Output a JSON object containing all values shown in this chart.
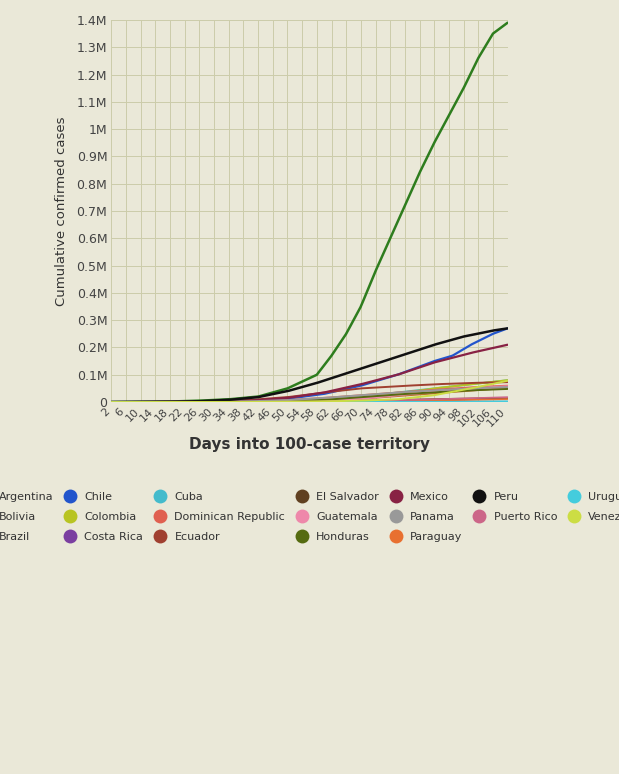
{
  "title": "",
  "xlabel": "Days into 100-case territory",
  "ylabel": "Cumulative confirmed cases",
  "background_color": "#eae8d8",
  "grid_color": "#ccccaa",
  "xlim": [
    2,
    110
  ],
  "ylim": [
    0,
    1400000
  ],
  "xticks": [
    2,
    6,
    10,
    14,
    18,
    22,
    26,
    30,
    34,
    38,
    42,
    46,
    50,
    54,
    58,
    62,
    66,
    70,
    74,
    78,
    82,
    86,
    90,
    94,
    98,
    102,
    106,
    110
  ],
  "yticks": [
    0,
    100000,
    200000,
    300000,
    400000,
    500000,
    600000,
    700000,
    800000,
    900000,
    1000000,
    1100000,
    1200000,
    1300000,
    1400000
  ],
  "series": {
    "Argentina": {
      "color": "#5bbcaa",
      "lw": 1.4,
      "x": [
        2,
        10,
        20,
        30,
        40,
        50,
        60,
        70,
        80,
        90,
        100,
        110
      ],
      "y": [
        0,
        100,
        300,
        600,
        1200,
        3000,
        8000,
        20000,
        35000,
        50000,
        65000,
        80000
      ]
    },
    "Bolivia": {
      "color": "#b8732a",
      "lw": 1.4,
      "x": [
        2,
        10,
        20,
        30,
        40,
        50,
        60,
        70,
        80,
        90,
        100,
        110
      ],
      "y": [
        0,
        100,
        200,
        400,
        800,
        2000,
        5000,
        12000,
        22000,
        32000,
        42000,
        52000
      ]
    },
    "Brazil": {
      "color": "#2e7d1e",
      "lw": 1.8,
      "x": [
        2,
        10,
        18,
        26,
        34,
        42,
        50,
        58,
        62,
        66,
        70,
        74,
        78,
        82,
        86,
        90,
        94,
        98,
        102,
        106,
        110
      ],
      "y": [
        0,
        500,
        2000,
        5000,
        10000,
        20000,
        50000,
        100000,
        170000,
        250000,
        350000,
        480000,
        600000,
        720000,
        840000,
        950000,
        1050000,
        1150000,
        1260000,
        1350000,
        1390000
      ]
    },
    "Chile": {
      "color": "#2255cc",
      "lw": 1.6,
      "x": [
        2,
        10,
        20,
        30,
        40,
        50,
        60,
        70,
        80,
        90,
        95,
        100,
        106,
        110
      ],
      "y": [
        0,
        200,
        800,
        2000,
        5000,
        12000,
        30000,
        60000,
        100000,
        150000,
        170000,
        210000,
        250000,
        270000
      ]
    },
    "Colombia": {
      "color": "#b8c422",
      "lw": 1.4,
      "x": [
        2,
        10,
        20,
        30,
        40,
        50,
        60,
        70,
        80,
        90,
        100,
        110
      ],
      "y": [
        0,
        100,
        200,
        400,
        800,
        2000,
        5000,
        15000,
        30000,
        50000,
        65000,
        80000
      ]
    },
    "Costa Rica": {
      "color": "#7b3fa0",
      "lw": 1.2,
      "x": [
        2,
        10,
        20,
        30,
        40,
        50,
        60,
        70,
        80,
        90,
        100,
        110
      ],
      "y": [
        0,
        50,
        100,
        200,
        400,
        800,
        1500,
        3000,
        5000,
        7000,
        10000,
        13000
      ]
    },
    "Cuba": {
      "color": "#44bbcc",
      "lw": 1.2,
      "x": [
        2,
        10,
        20,
        30,
        40,
        50,
        60,
        70,
        80,
        90,
        100,
        110
      ],
      "y": [
        0,
        50,
        100,
        200,
        400,
        700,
        1000,
        1500,
        2000,
        2200,
        2400,
        2600
      ]
    },
    "Dominican Republic": {
      "color": "#e06050",
      "lw": 1.4,
      "x": [
        2,
        10,
        20,
        30,
        40,
        50,
        60,
        70,
        80,
        90,
        100,
        110
      ],
      "y": [
        0,
        200,
        500,
        1200,
        3000,
        7000,
        15000,
        25000,
        35000,
        45000,
        54000,
        60000
      ]
    },
    "Ecuador": {
      "color": "#a04030",
      "lw": 1.4,
      "x": [
        2,
        10,
        20,
        30,
        40,
        50,
        60,
        70,
        80,
        90,
        100,
        110
      ],
      "y": [
        0,
        300,
        800,
        3000,
        8000,
        18000,
        35000,
        50000,
        58000,
        65000,
        70000,
        73000
      ]
    },
    "El Salvador": {
      "color": "#604020",
      "lw": 1.2,
      "x": [
        2,
        10,
        20,
        30,
        40,
        50,
        60,
        70,
        80,
        90,
        100,
        110
      ],
      "y": [
        0,
        50,
        100,
        200,
        400,
        800,
        2000,
        5000,
        8000,
        11000,
        13000,
        15000
      ]
    },
    "Guatemala": {
      "color": "#ee88aa",
      "lw": 1.4,
      "x": [
        2,
        10,
        20,
        30,
        40,
        50,
        60,
        70,
        80,
        90,
        100,
        110
      ],
      "y": [
        0,
        50,
        100,
        300,
        800,
        2000,
        5000,
        12000,
        25000,
        38000,
        50000,
        58000
      ]
    },
    "Honduras": {
      "color": "#556b10",
      "lw": 1.4,
      "x": [
        2,
        10,
        20,
        30,
        40,
        50,
        60,
        70,
        80,
        90,
        100,
        110
      ],
      "y": [
        0,
        100,
        200,
        500,
        1200,
        3000,
        8000,
        18000,
        28000,
        36000,
        43000,
        48000
      ]
    },
    "Mexico": {
      "color": "#882244",
      "lw": 1.6,
      "x": [
        2,
        10,
        20,
        30,
        40,
        50,
        60,
        70,
        80,
        90,
        100,
        110
      ],
      "y": [
        0,
        200,
        600,
        1500,
        5000,
        15000,
        35000,
        65000,
        100000,
        145000,
        180000,
        210000
      ]
    },
    "Panama": {
      "color": "#999999",
      "lw": 1.4,
      "x": [
        2,
        10,
        20,
        30,
        40,
        50,
        60,
        70,
        80,
        90,
        100,
        110
      ],
      "y": [
        0,
        200,
        500,
        1200,
        3000,
        7000,
        15000,
        25000,
        35000,
        43000,
        50000,
        55000
      ]
    },
    "Paraguay": {
      "color": "#e87030",
      "lw": 1.2,
      "x": [
        2,
        10,
        20,
        30,
        40,
        50,
        60,
        70,
        80,
        90,
        100,
        110
      ],
      "y": [
        0,
        20,
        50,
        100,
        200,
        400,
        800,
        1500,
        3000,
        5500,
        8000,
        11000
      ]
    },
    "Peru": {
      "color": "#111111",
      "lw": 1.8,
      "x": [
        2,
        10,
        18,
        26,
        34,
        42,
        50,
        58,
        66,
        74,
        82,
        90,
        98,
        106,
        110
      ],
      "y": [
        0,
        300,
        1000,
        3000,
        8000,
        18000,
        40000,
        70000,
        105000,
        140000,
        175000,
        210000,
        240000,
        262000,
        270000
      ]
    },
    "Puerto Rico": {
      "color": "#cc6688",
      "lw": 1.2,
      "x": [
        2,
        10,
        20,
        30,
        40,
        50,
        60,
        70,
        80,
        90,
        100,
        110
      ],
      "y": [
        0,
        30,
        80,
        200,
        500,
        1000,
        2000,
        4000,
        7000,
        10000,
        14000,
        18000
      ]
    },
    "Uruguay": {
      "color": "#44ccdd",
      "lw": 1.2,
      "x": [
        2,
        10,
        20,
        30,
        40,
        50,
        60,
        70,
        80,
        90,
        100,
        110
      ],
      "y": [
        0,
        30,
        80,
        200,
        500,
        800,
        900,
        950,
        1000,
        1050,
        1100,
        1200
      ]
    },
    "Venezuela": {
      "color": "#ccdd44",
      "lw": 1.4,
      "x": [
        2,
        10,
        20,
        30,
        40,
        50,
        60,
        70,
        80,
        90,
        100,
        110
      ],
      "y": [
        0,
        20,
        60,
        150,
        400,
        1000,
        2500,
        5000,
        10000,
        25000,
        50000,
        78000
      ]
    }
  },
  "legend_items": [
    [
      "Argentina",
      "#5bbcaa"
    ],
    [
      "Bolivia",
      "#b8732a"
    ],
    [
      "Brazil",
      "#2e7d1e"
    ],
    [
      "Chile",
      "#2255cc"
    ],
    [
      "Colombia",
      "#b8c422"
    ],
    [
      "Costa Rica",
      "#7b3fa0"
    ],
    [
      "Cuba",
      "#44bbcc"
    ],
    [
      "Dominican Republic",
      "#e06050"
    ],
    [
      "Ecuador",
      "#a04030"
    ],
    [
      "El Salvador",
      "#604020"
    ],
    [
      "Guatemala",
      "#ee88aa"
    ],
    [
      "Honduras",
      "#556b10"
    ],
    [
      "Mexico",
      "#882244"
    ],
    [
      "Panama",
      "#999999"
    ],
    [
      "Paraguay",
      "#e87030"
    ],
    [
      "Peru",
      "#111111"
    ],
    [
      "Puerto Rico",
      "#cc6688"
    ],
    [
      "Uruguay",
      "#44ccdd"
    ],
    [
      "Venezuela",
      "#ccdd44"
    ]
  ]
}
